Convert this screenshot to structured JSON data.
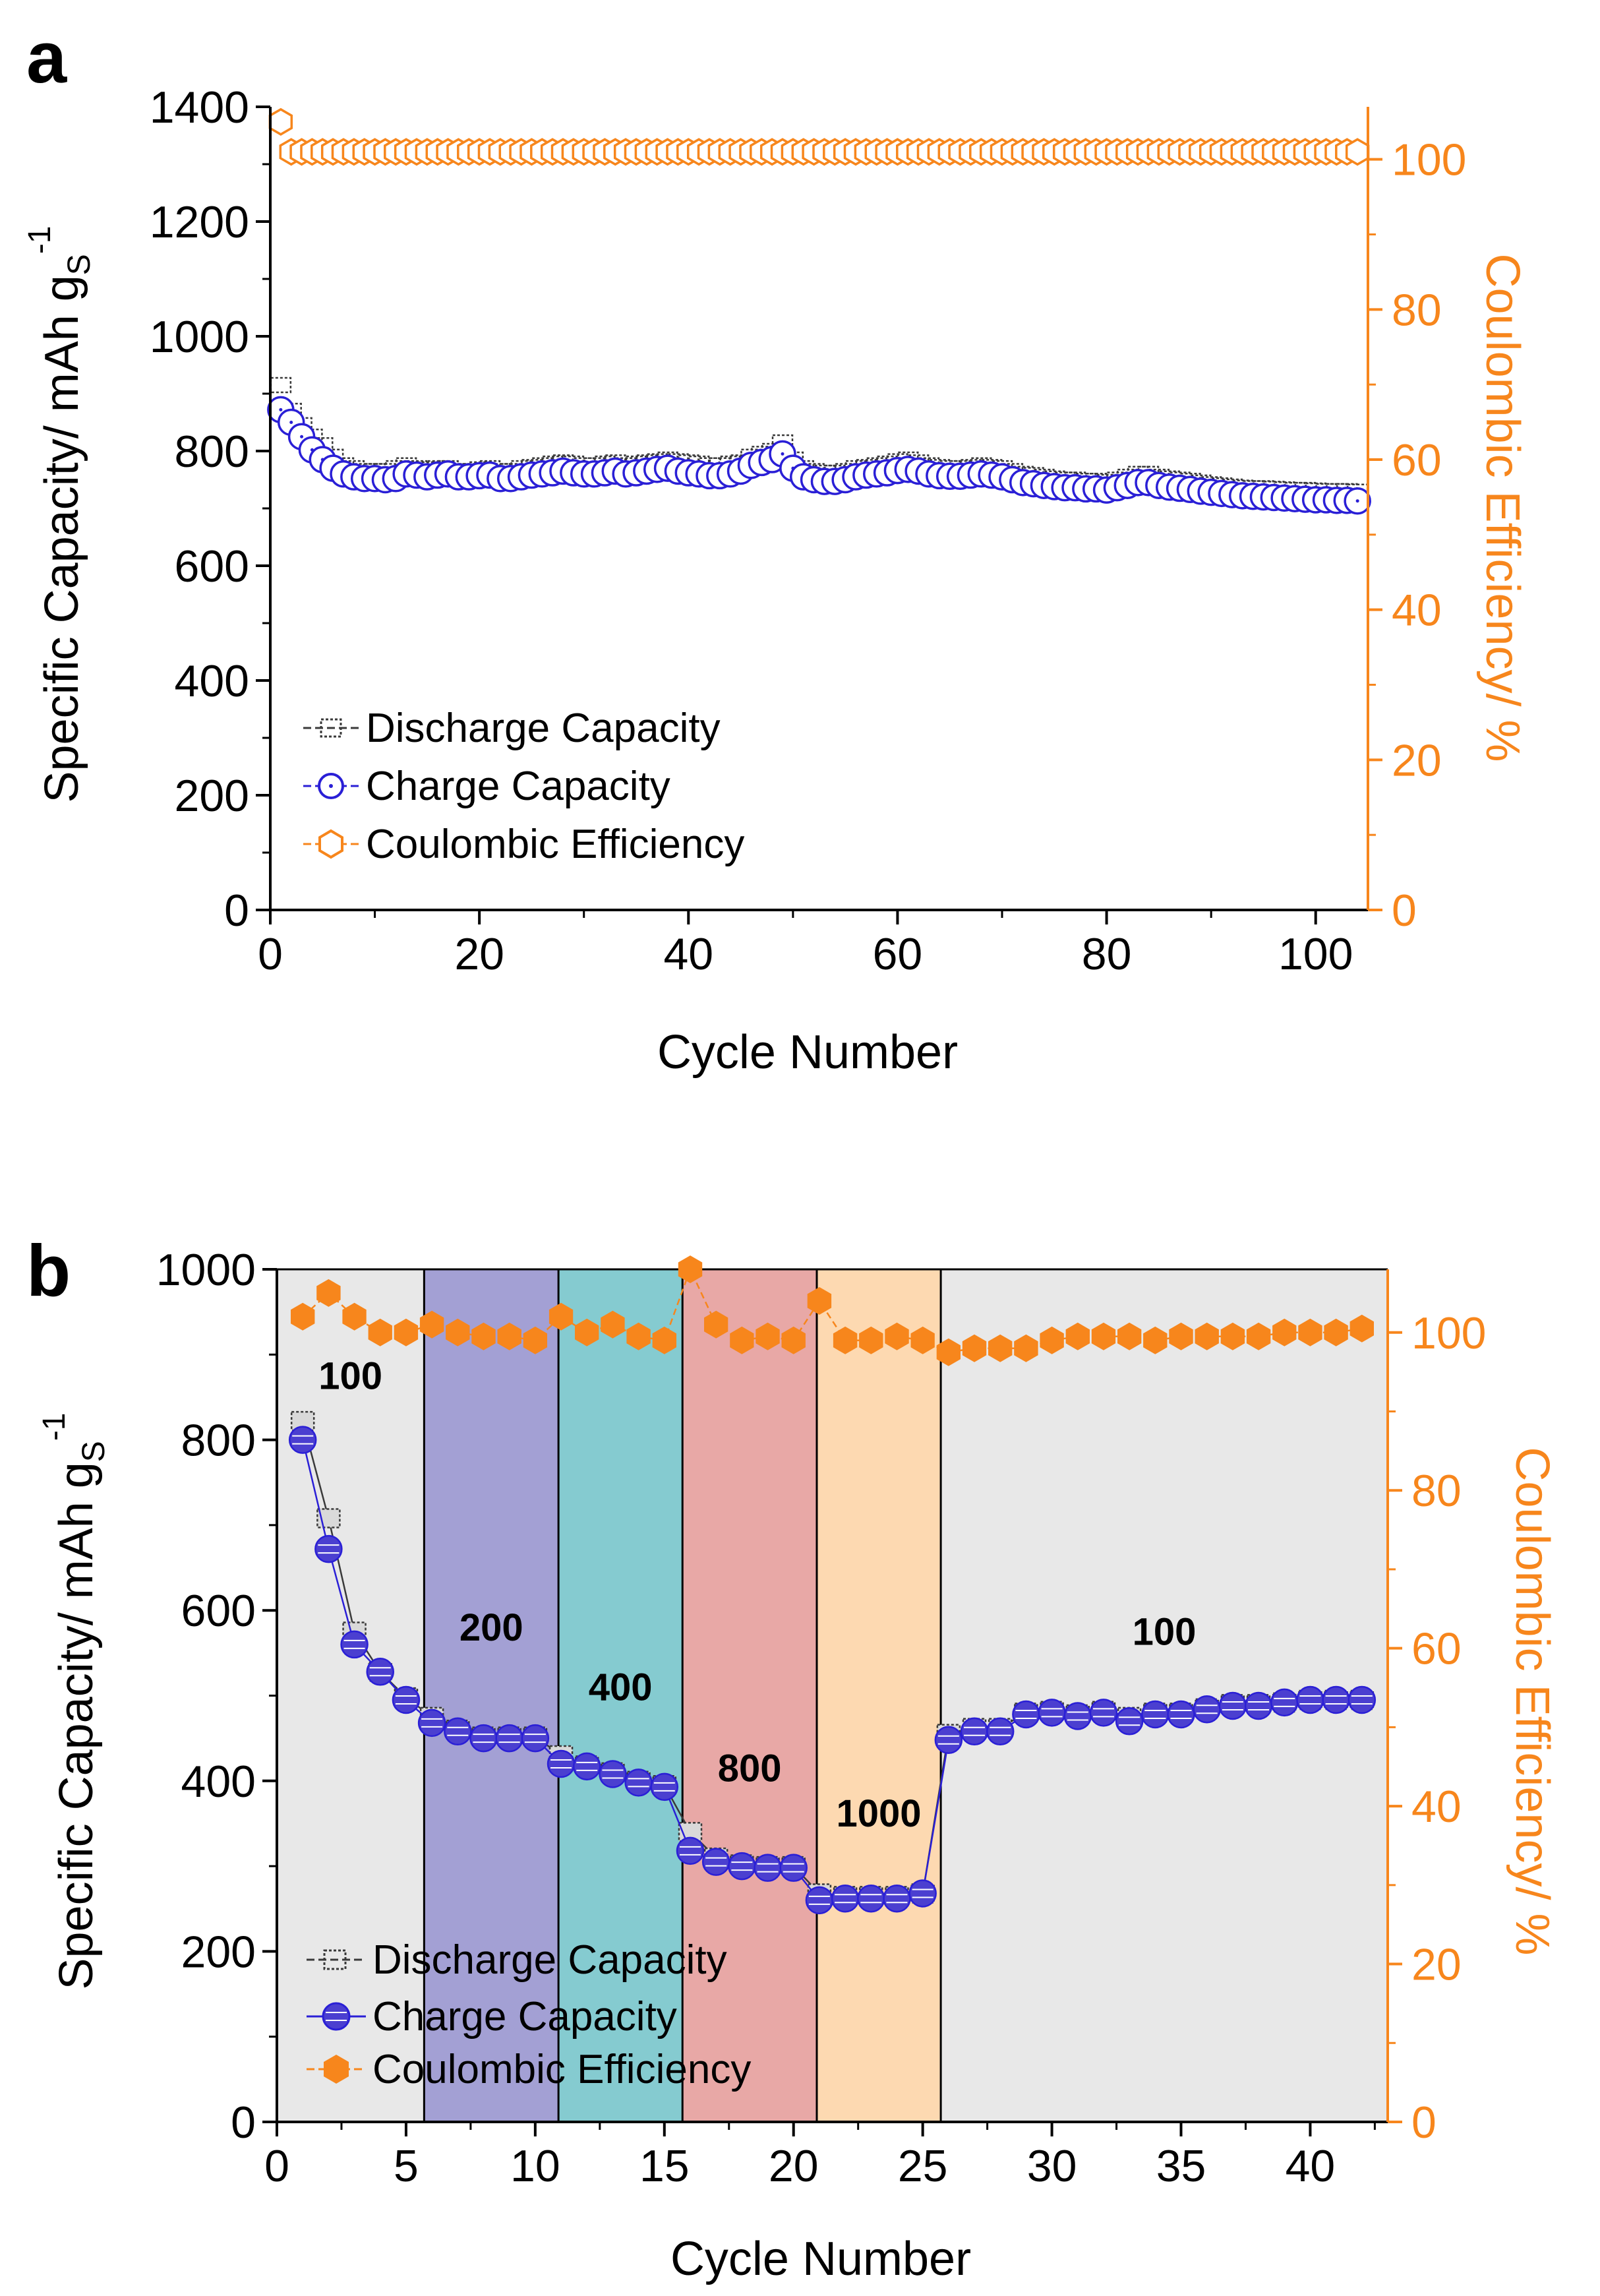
{
  "colors": {
    "discharge": "#3a3a3a",
    "charge": "#2a1fd6",
    "charge_fill": "#4b3fd0",
    "ce": "#f7861c",
    "axis": "#000000"
  },
  "chart_data": [
    {
      "panel": "a",
      "type": "scatter",
      "xlabel": "Cycle Number",
      "ylabel": "Specific Capacity/ mAh g",
      "ylabel_sub": "S",
      "ylabel_sup": "-1",
      "y2label": "Coulombic Efficiency/ %",
      "xlim": [
        0,
        105
      ],
      "ylim": [
        0,
        1400
      ],
      "y2lim": [
        0,
        107
      ],
      "xticks": [
        "0",
        "20",
        "40",
        "60",
        "80",
        "100"
      ],
      "yticks": [
        "0",
        "200",
        "400",
        "600",
        "800",
        "1000",
        "1200",
        "1400"
      ],
      "y2ticks": [
        "0",
        "20",
        "40",
        "60",
        "80",
        "100"
      ],
      "legend": [
        "Discharge Capacity",
        "Charge Capacity",
        "Coulombic Efficiency"
      ],
      "series": [
        {
          "name": "Discharge Capacity",
          "x_start": 1,
          "values": [
            915,
            870,
            845,
            825,
            810,
            790,
            775,
            770,
            765,
            765,
            765,
            770,
            775,
            770,
            768,
            770,
            770,
            765,
            765,
            768,
            770,
            765,
            765,
            770,
            772,
            775,
            778,
            780,
            778,
            775,
            775,
            778,
            780,
            775,
            778,
            780,
            782,
            785,
            782,
            780,
            778,
            775,
            775,
            778,
            780,
            790,
            795,
            800,
            815,
            785,
            770,
            765,
            762,
            762,
            765,
            770,
            772,
            775,
            778,
            782,
            785,
            780,
            775,
            772,
            770,
            770,
            772,
            775,
            772,
            770,
            765,
            760,
            758,
            755,
            752,
            750,
            750,
            748,
            748,
            746,
            750,
            755,
            760,
            760,
            755,
            752,
            750,
            748,
            745,
            742,
            740,
            738,
            736,
            735,
            735,
            734,
            733,
            732,
            732,
            731,
            730,
            730,
            730,
            729
          ]
        },
        {
          "name": "Charge Capacity",
          "x_start": 1,
          "values": [
            872,
            850,
            825,
            802,
            785,
            770,
            760,
            755,
            752,
            752,
            750,
            752,
            760,
            758,
            755,
            758,
            760,
            755,
            755,
            757,
            758,
            752,
            752,
            755,
            758,
            760,
            762,
            765,
            762,
            760,
            760,
            762,
            765,
            760,
            762,
            765,
            768,
            770,
            765,
            762,
            760,
            757,
            757,
            760,
            765,
            775,
            780,
            785,
            795,
            770,
            755,
            750,
            747,
            747,
            750,
            755,
            758,
            760,
            762,
            766,
            768,
            765,
            760,
            757,
            756,
            756,
            758,
            760,
            758,
            755,
            750,
            745,
            743,
            740,
            738,
            736,
            736,
            734,
            734,
            732,
            736,
            740,
            745,
            745,
            740,
            737,
            735,
            733,
            730,
            728,
            726,
            724,
            722,
            721,
            720,
            719,
            718,
            717,
            716,
            715,
            715,
            714,
            714,
            713
          ]
        },
        {
          "name": "Coulombic Efficiency",
          "x_start": 1,
          "values": [
            105,
            101,
            101,
            101,
            101,
            101,
            101,
            101,
            101,
            101,
            101,
            101,
            101,
            101,
            101,
            101,
            101,
            101,
            101,
            101,
            101,
            101,
            101,
            101,
            101,
            101,
            101,
            101,
            101,
            101,
            101,
            101,
            101,
            101,
            101,
            101,
            101,
            101,
            101,
            101,
            101,
            101,
            101,
            101,
            101,
            101,
            101,
            101,
            101,
            101,
            101,
            101,
            101,
            101,
            101,
            101,
            101,
            101,
            101,
            101,
            101,
            101,
            101,
            101,
            101,
            101,
            101,
            101,
            101,
            101,
            101,
            101,
            101,
            101,
            101,
            101,
            101,
            101,
            101,
            101,
            101,
            101,
            101,
            101,
            101,
            101,
            101,
            101,
            101,
            101,
            101,
            101,
            101,
            101,
            101,
            101,
            101,
            101,
            101,
            101,
            101,
            101,
            101,
            101
          ]
        }
      ]
    },
    {
      "panel": "b",
      "type": "scatter",
      "xlabel": "Cycle Number",
      "ylabel": "Specific Capacity/ mAh g",
      "ylabel_sub": "S",
      "ylabel_sup": "-1",
      "y2label": "Coulombic Efficiency/ %",
      "xlim": [
        0,
        43
      ],
      "ylim": [
        0,
        1000
      ],
      "y2lim": [
        0,
        108
      ],
      "xticks": [
        "0",
        "5",
        "10",
        "15",
        "20",
        "25",
        "30",
        "35",
        "40"
      ],
      "yticks": [
        "0",
        "200",
        "400",
        "600",
        "800",
        "1000"
      ],
      "y2ticks": [
        "0",
        "20",
        "40",
        "60",
        "80",
        "100"
      ],
      "legend": [
        "Discharge Capacity",
        "Charge Capacity",
        "Coulombic Efficiency"
      ],
      "regions": [
        {
          "x0": 0,
          "x1": 5.7,
          "color": "#e8e8e8",
          "label": "100"
        },
        {
          "x0": 5.7,
          "x1": 10.9,
          "color": "#a3a0d4",
          "label": "200"
        },
        {
          "x0": 10.9,
          "x1": 15.7,
          "color": "#85cbd0",
          "label": "400"
        },
        {
          "x0": 15.7,
          "x1": 20.9,
          "color": "#e8a8a6",
          "label": "800"
        },
        {
          "x0": 20.9,
          "x1": 25.7,
          "color": "#fdd9b1",
          "label": "1000"
        },
        {
          "x0": 25.7,
          "x1": 43,
          "color": "#e8e8e8",
          "label": "100"
        }
      ],
      "region_label_values": [
        875,
        580,
        510,
        415,
        362,
        575
      ],
      "x": [
        1,
        2,
        3,
        4,
        5,
        6,
        7,
        8,
        9,
        10,
        11,
        12,
        13,
        14,
        15,
        16,
        17,
        18,
        19,
        20,
        21,
        22,
        23,
        24,
        25,
        26,
        27,
        28,
        29,
        30,
        31,
        32,
        33,
        34,
        35,
        36,
        37,
        38,
        39,
        40,
        41,
        42
      ],
      "series": [
        {
          "name": "Discharge Capacity",
          "values": [
            822,
            708,
            575,
            528,
            498,
            475,
            460,
            452,
            452,
            452,
            430,
            418,
            410,
            400,
            395,
            340,
            310,
            302,
            300,
            300,
            268,
            265,
            265,
            265,
            268,
            455,
            462,
            462,
            480,
            482,
            478,
            482,
            475,
            480,
            480,
            485,
            490,
            490,
            492,
            495,
            495,
            495
          ]
        },
        {
          "name": "Charge Capacity",
          "values": [
            800,
            672,
            560,
            528,
            495,
            468,
            458,
            450,
            450,
            450,
            420,
            417,
            408,
            398,
            393,
            318,
            305,
            300,
            298,
            298,
            260,
            262,
            262,
            262,
            268,
            448,
            458,
            458,
            478,
            480,
            476,
            480,
            470,
            478,
            478,
            484,
            488,
            488,
            492,
            495,
            495,
            495
          ]
        },
        {
          "name": "Coulombic Efficiency",
          "values": [
            102,
            105,
            102,
            100,
            100,
            101,
            100,
            99.5,
            99.5,
            99,
            102,
            100,
            101,
            99.5,
            99,
            108,
            101,
            99,
            99.5,
            99,
            104,
            99,
            99,
            99.5,
            99,
            97.5,
            98,
            98,
            98,
            99,
            99.5,
            99.5,
            99.5,
            99,
            99.5,
            99.5,
            99.5,
            99.5,
            100,
            100,
            100,
            100.5
          ]
        }
      ]
    }
  ]
}
